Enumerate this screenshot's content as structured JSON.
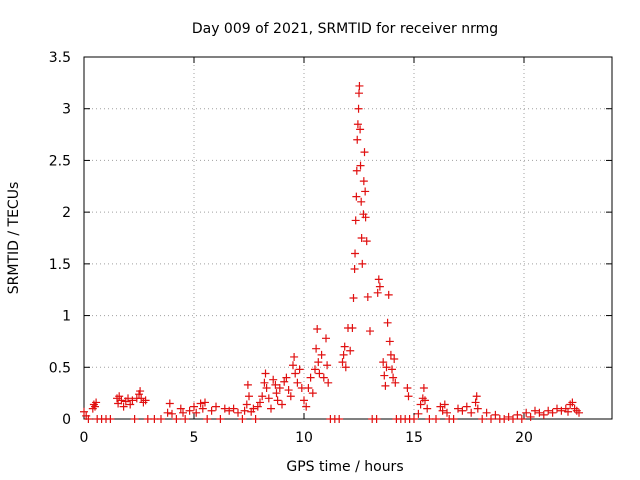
{
  "chart_data": {
    "type": "scatter",
    "title": "Day 009 of 2021, SRMTID for receiver nrmg",
    "xlabel": "GPS time / hours",
    "ylabel": "SRMTID / TECUs",
    "xlim": [
      0,
      24
    ],
    "ylim": [
      0,
      3.5
    ],
    "xticks": [
      0,
      5,
      10,
      15,
      20
    ],
    "xtick_labels": [
      "0",
      "5",
      "10",
      "15",
      "20"
    ],
    "yticks": [
      0,
      0.5,
      1,
      1.5,
      2,
      2.5,
      3,
      3.5
    ],
    "ytick_labels": [
      "0",
      "0.5",
      "1",
      "1.5",
      "2",
      "2.5",
      "3",
      "3.5"
    ],
    "grid": true,
    "marker": "plus",
    "series": [
      {
        "name": "SRMTID",
        "color": "#e01010",
        "points": [
          [
            0.0,
            0.07
          ],
          [
            0.1,
            0.03
          ],
          [
            0.2,
            0.0
          ],
          [
            0.4,
            0.1
          ],
          [
            0.45,
            0.14
          ],
          [
            0.5,
            0.12
          ],
          [
            0.55,
            0.16
          ],
          [
            0.6,
            0.0
          ],
          [
            0.8,
            0.0
          ],
          [
            1.0,
            0.0
          ],
          [
            1.2,
            0.0
          ],
          [
            1.5,
            0.2
          ],
          [
            1.55,
            0.15
          ],
          [
            1.6,
            0.22
          ],
          [
            1.7,
            0.18
          ],
          [
            1.8,
            0.12
          ],
          [
            1.9,
            0.17
          ],
          [
            2.0,
            0.2
          ],
          [
            2.1,
            0.14
          ],
          [
            2.2,
            0.18
          ],
          [
            2.3,
            0.0
          ],
          [
            2.4,
            0.2
          ],
          [
            2.5,
            0.24
          ],
          [
            2.55,
            0.27
          ],
          [
            2.6,
            0.2
          ],
          [
            2.7,
            0.16
          ],
          [
            2.8,
            0.18
          ],
          [
            2.9,
            0.0
          ],
          [
            3.2,
            0.0
          ],
          [
            3.5,
            0.0
          ],
          [
            3.8,
            0.06
          ],
          [
            3.9,
            0.15
          ],
          [
            4.0,
            0.05
          ],
          [
            4.2,
            0.0
          ],
          [
            4.4,
            0.1
          ],
          [
            4.5,
            0.06
          ],
          [
            4.6,
            0.0
          ],
          [
            4.8,
            0.08
          ],
          [
            5.0,
            0.12
          ],
          [
            5.1,
            0.06
          ],
          [
            5.3,
            0.15
          ],
          [
            5.4,
            0.1
          ],
          [
            5.5,
            0.16
          ],
          [
            5.6,
            0.0
          ],
          [
            5.8,
            0.08
          ],
          [
            6.0,
            0.12
          ],
          [
            6.2,
            0.0
          ],
          [
            6.4,
            0.1
          ],
          [
            6.6,
            0.08
          ],
          [
            6.8,
            0.1
          ],
          [
            7.0,
            0.06
          ],
          [
            7.2,
            0.0
          ],
          [
            7.3,
            0.08
          ],
          [
            7.4,
            0.14
          ],
          [
            7.45,
            0.33
          ],
          [
            7.5,
            0.22
          ],
          [
            7.6,
            0.07
          ],
          [
            7.7,
            0.1
          ],
          [
            7.8,
            0.0
          ],
          [
            7.9,
            0.12
          ],
          [
            8.0,
            0.16
          ],
          [
            8.1,
            0.22
          ],
          [
            8.2,
            0.35
          ],
          [
            8.25,
            0.44
          ],
          [
            8.3,
            0.3
          ],
          [
            8.4,
            0.2
          ],
          [
            8.5,
            0.1
          ],
          [
            8.6,
            0.38
          ],
          [
            8.7,
            0.33
          ],
          [
            8.75,
            0.25
          ],
          [
            8.8,
            0.18
          ],
          [
            8.9,
            0.3
          ],
          [
            9.0,
            0.14
          ],
          [
            9.1,
            0.36
          ],
          [
            9.2,
            0.4
          ],
          [
            9.3,
            0.28
          ],
          [
            9.4,
            0.22
          ],
          [
            9.5,
            0.52
          ],
          [
            9.55,
            0.6
          ],
          [
            9.6,
            0.44
          ],
          [
            9.7,
            0.35
          ],
          [
            9.8,
            0.48
          ],
          [
            9.9,
            0.3
          ],
          [
            10.0,
            0.18
          ],
          [
            10.1,
            0.12
          ],
          [
            10.2,
            0.3
          ],
          [
            10.3,
            0.4
          ],
          [
            10.4,
            0.25
          ],
          [
            10.5,
            0.48
          ],
          [
            10.55,
            0.68
          ],
          [
            10.6,
            0.87
          ],
          [
            10.65,
            0.55
          ],
          [
            10.7,
            0.44
          ],
          [
            10.8,
            0.62
          ],
          [
            10.9,
            0.4
          ],
          [
            11.0,
            0.78
          ],
          [
            11.05,
            0.52
          ],
          [
            11.1,
            0.35
          ],
          [
            11.2,
            0.0
          ],
          [
            11.4,
            0.0
          ],
          [
            11.6,
            0.0
          ],
          [
            11.75,
            0.55
          ],
          [
            11.8,
            0.62
          ],
          [
            11.85,
            0.7
          ],
          [
            11.9,
            0.5
          ],
          [
            12.0,
            0.88
          ],
          [
            12.1,
            0.66
          ],
          [
            12.2,
            0.88
          ],
          [
            12.25,
            1.17
          ],
          [
            12.3,
            1.45
          ],
          [
            12.32,
            1.6
          ],
          [
            12.35,
            1.92
          ],
          [
            12.38,
            2.15
          ],
          [
            12.4,
            2.4
          ],
          [
            12.42,
            2.7
          ],
          [
            12.45,
            2.85
          ],
          [
            12.48,
            3.0
          ],
          [
            12.5,
            3.15
          ],
          [
            12.52,
            3.22
          ],
          [
            12.55,
            2.8
          ],
          [
            12.57,
            2.45
          ],
          [
            12.6,
            2.1
          ],
          [
            12.62,
            1.75
          ],
          [
            12.65,
            1.5
          ],
          [
            12.7,
            1.98
          ],
          [
            12.72,
            2.3
          ],
          [
            12.75,
            2.58
          ],
          [
            12.78,
            2.2
          ],
          [
            12.8,
            1.95
          ],
          [
            12.85,
            1.72
          ],
          [
            12.9,
            1.18
          ],
          [
            13.0,
            0.85
          ],
          [
            13.1,
            0.0
          ],
          [
            13.3,
            0.0
          ],
          [
            13.35,
            1.22
          ],
          [
            13.4,
            1.35
          ],
          [
            13.45,
            1.28
          ],
          [
            13.6,
            0.55
          ],
          [
            13.65,
            0.42
          ],
          [
            13.7,
            0.32
          ],
          [
            13.75,
            0.5
          ],
          [
            13.8,
            0.93
          ],
          [
            13.85,
            1.2
          ],
          [
            13.9,
            0.75
          ],
          [
            13.95,
            0.62
          ],
          [
            14.0,
            0.48
          ],
          [
            14.05,
            0.4
          ],
          [
            14.1,
            0.58
          ],
          [
            14.15,
            0.35
          ],
          [
            14.2,
            0.0
          ],
          [
            14.4,
            0.0
          ],
          [
            14.6,
            0.0
          ],
          [
            14.7,
            0.3
          ],
          [
            14.75,
            0.22
          ],
          [
            14.8,
            0.0
          ],
          [
            15.0,
            0.0
          ],
          [
            15.2,
            0.05
          ],
          [
            15.3,
            0.14
          ],
          [
            15.4,
            0.2
          ],
          [
            15.45,
            0.3
          ],
          [
            15.5,
            0.18
          ],
          [
            15.6,
            0.1
          ],
          [
            15.7,
            0.0
          ],
          [
            16.0,
            0.0
          ],
          [
            16.2,
            0.12
          ],
          [
            16.3,
            0.08
          ],
          [
            16.4,
            0.14
          ],
          [
            16.5,
            0.06
          ],
          [
            16.6,
            0.0
          ],
          [
            16.8,
            0.0
          ],
          [
            17.0,
            0.1
          ],
          [
            17.2,
            0.08
          ],
          [
            17.4,
            0.12
          ],
          [
            17.6,
            0.06
          ],
          [
            17.8,
            0.16
          ],
          [
            17.85,
            0.22
          ],
          [
            17.9,
            0.1
          ],
          [
            18.1,
            0.0
          ],
          [
            18.3,
            0.06
          ],
          [
            18.5,
            0.0
          ],
          [
            18.7,
            0.04
          ],
          [
            18.9,
            0.0
          ],
          [
            19.1,
            0.0
          ],
          [
            19.3,
            0.02
          ],
          [
            19.5,
            0.0
          ],
          [
            19.7,
            0.04
          ],
          [
            19.9,
            0.0
          ],
          [
            20.1,
            0.06
          ],
          [
            20.3,
            0.02
          ],
          [
            20.5,
            0.08
          ],
          [
            20.7,
            0.06
          ],
          [
            20.9,
            0.04
          ],
          [
            21.1,
            0.08
          ],
          [
            21.3,
            0.06
          ],
          [
            21.5,
            0.1
          ],
          [
            21.7,
            0.08
          ],
          [
            21.9,
            0.1
          ],
          [
            22.0,
            0.07
          ],
          [
            22.1,
            0.14
          ],
          [
            22.2,
            0.16
          ],
          [
            22.3,
            0.1
          ],
          [
            22.4,
            0.08
          ],
          [
            22.5,
            0.06
          ]
        ]
      }
    ]
  }
}
